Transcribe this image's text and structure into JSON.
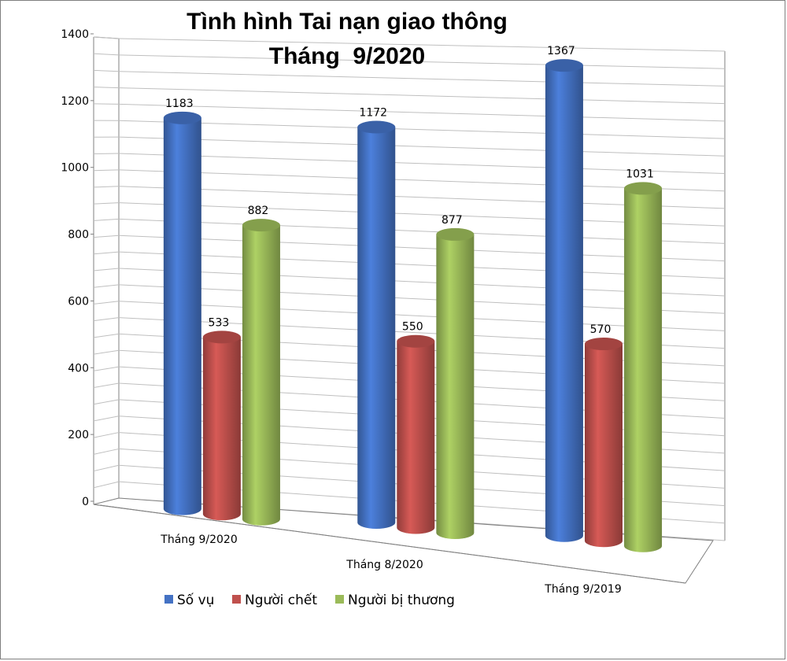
{
  "chart_data": {
    "type": "bar",
    "variant": "3d-cylinder-clustered",
    "title_line1": "Tình hình Tai nạn giao thông",
    "title_line2": "Tháng  9/2020",
    "categories": [
      "Tháng 9/2020",
      "Tháng 8/2020",
      "Tháng 9/2019"
    ],
    "series": [
      {
        "name": "Số vụ",
        "values": [
          1183,
          1172,
          1367
        ],
        "color": "#4472c4"
      },
      {
        "name": "Người chết",
        "values": [
          533,
          550,
          570
        ],
        "color": "#c0504d"
      },
      {
        "name": "Người bị thương",
        "values": [
          882,
          877,
          1031
        ],
        "color": "#9bbb59"
      }
    ],
    "yticks": [
      "0",
      "200",
      "400",
      "600",
      "800",
      "1000",
      "1200",
      "1400"
    ],
    "ylim": [
      0,
      1400
    ],
    "grid": true,
    "legend_position": "bottom-left"
  }
}
